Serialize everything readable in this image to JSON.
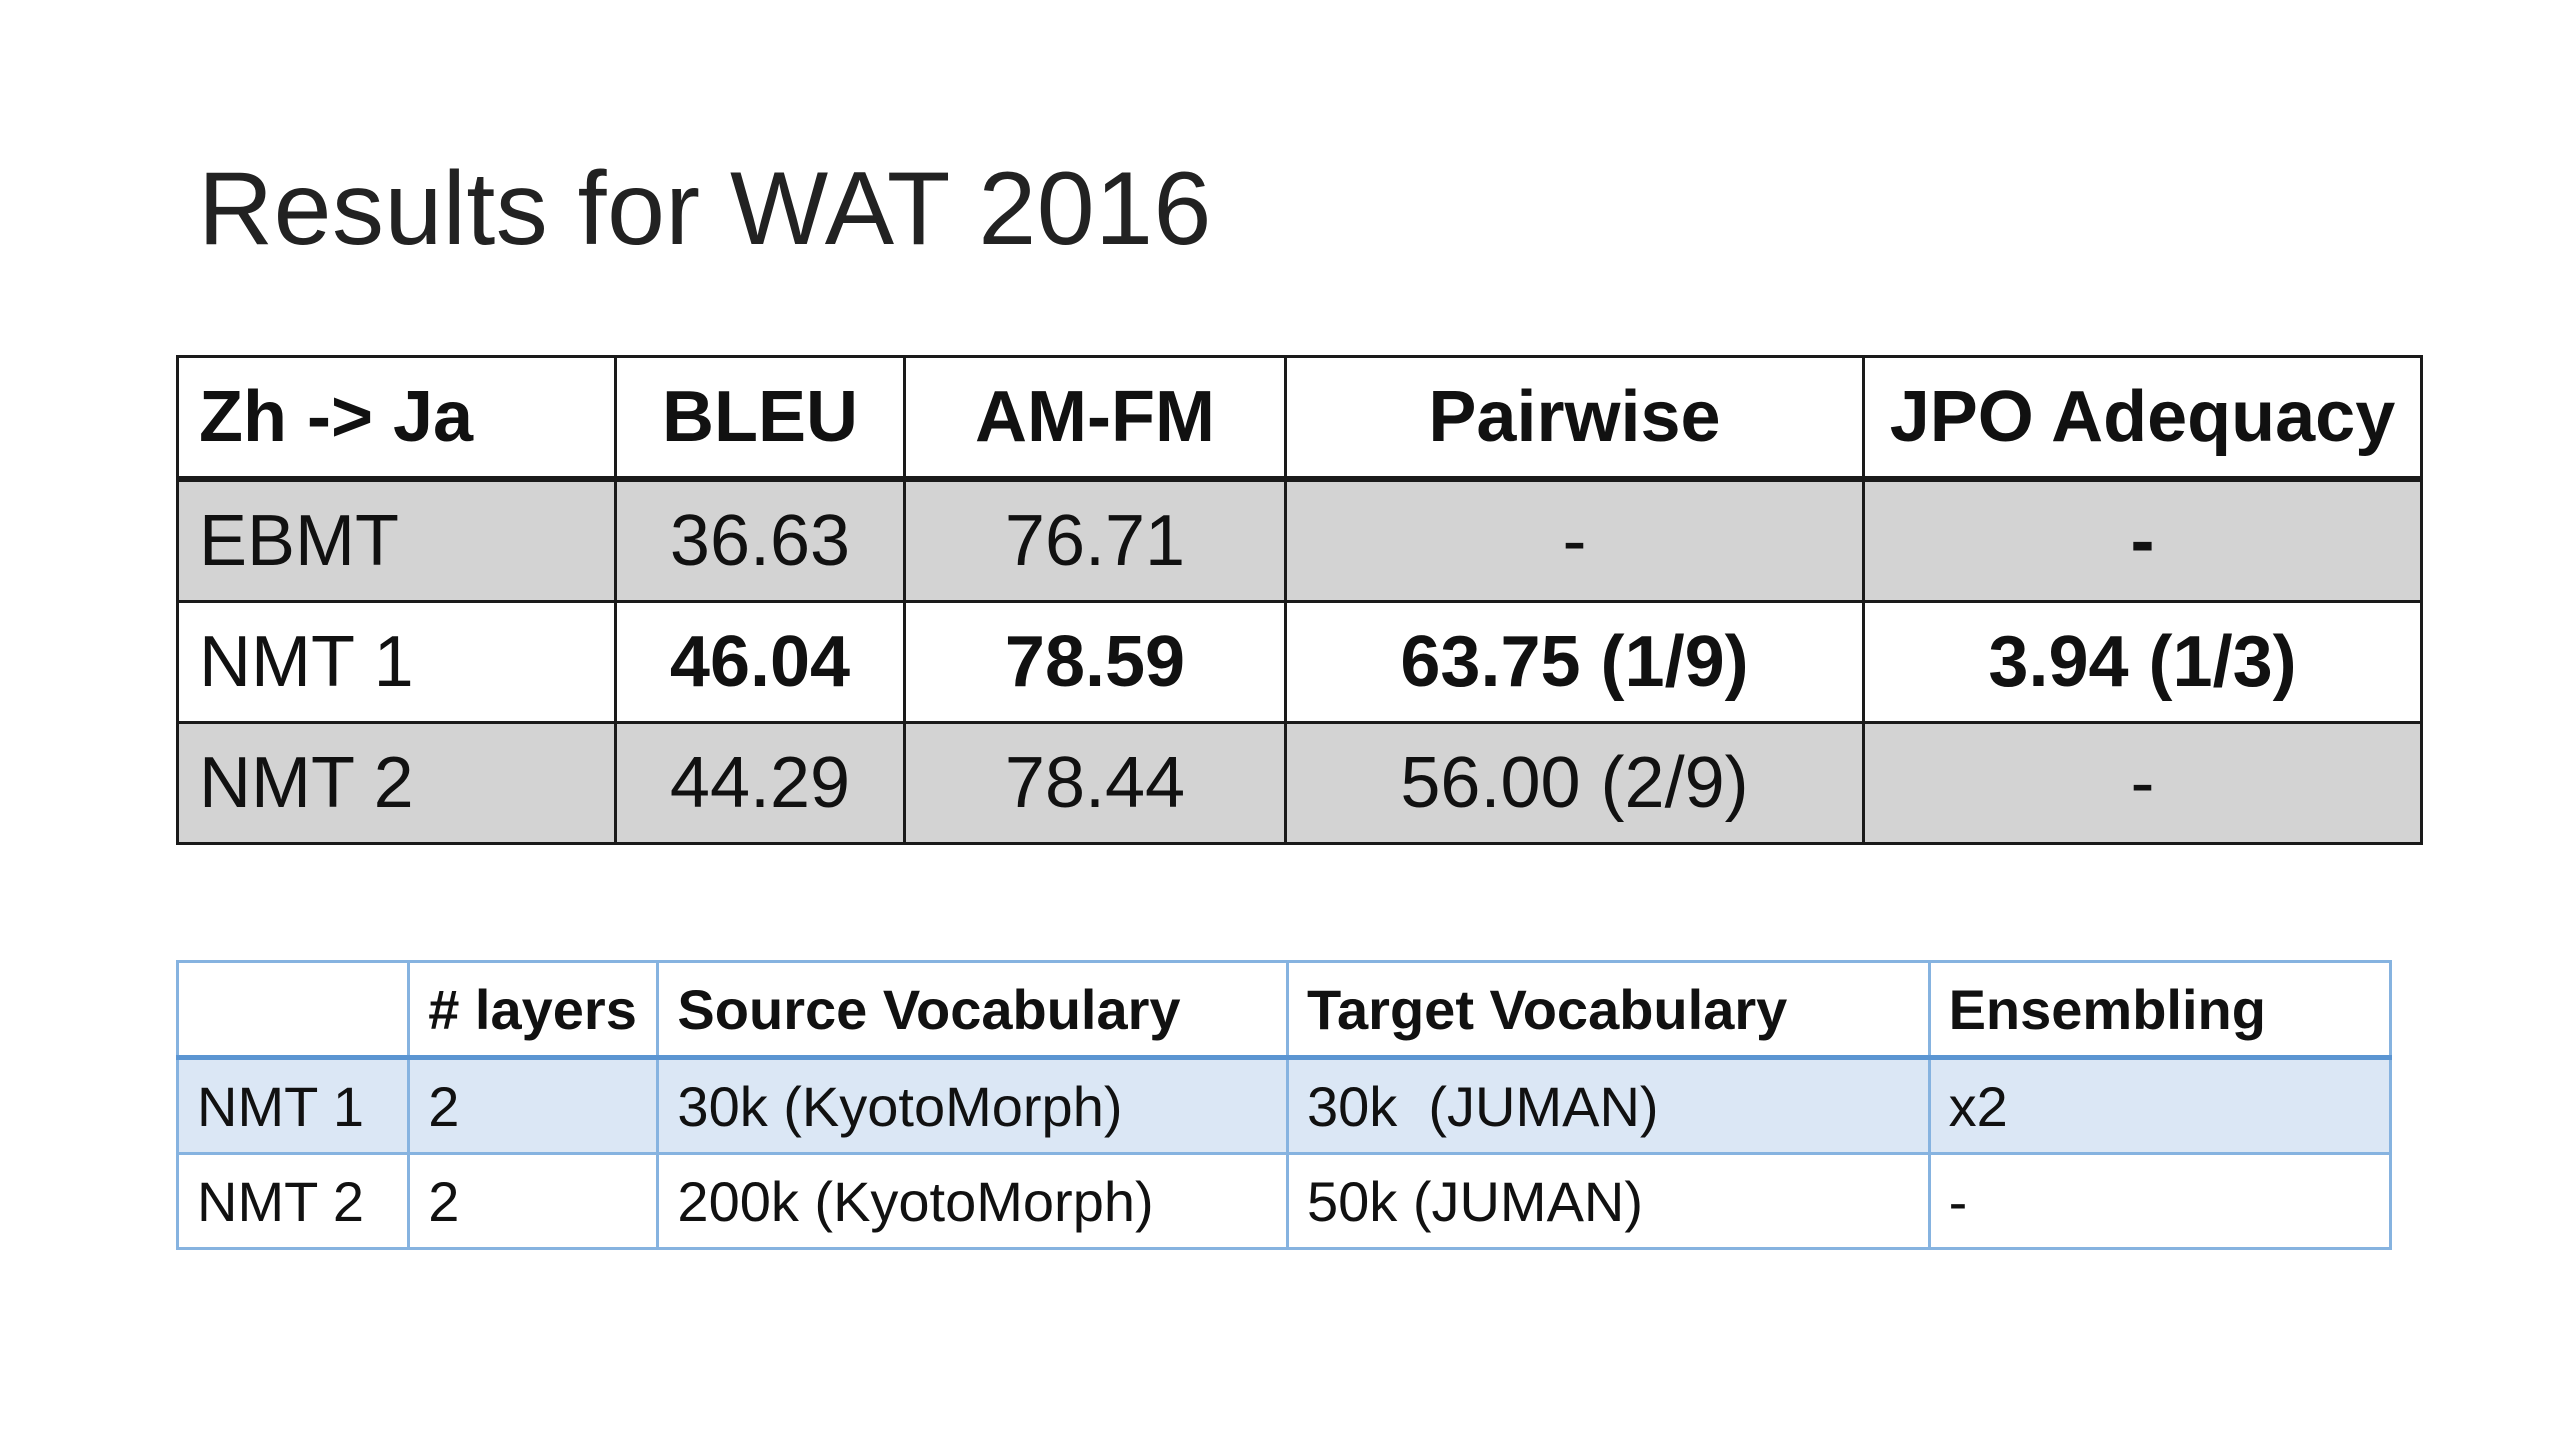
{
  "title": "Results for WAT 2016",
  "results_table": {
    "headers": [
      "Zh -> Ja",
      "BLEU",
      "AM-FM",
      "Pairwise",
      "JPO Adequacy"
    ],
    "rows": [
      {
        "label": "EBMT",
        "bleu": "36.63",
        "amfm": "76.71",
        "pairwise": "-",
        "jpo": "-"
      },
      {
        "label": "NMT 1",
        "bleu": "46.04",
        "amfm": "78.59",
        "pairwise": "63.75 (1/9)",
        "jpo": "3.94 (1/3)"
      },
      {
        "label": "NMT 2",
        "bleu": "44.29",
        "amfm": "78.44",
        "pairwise": "56.00 (2/9)",
        "jpo": "-"
      }
    ]
  },
  "config_table": {
    "headers": [
      "",
      "# layers",
      "Source Vocabulary",
      "Target Vocabulary",
      "Ensembling"
    ],
    "rows": [
      {
        "label": "NMT 1",
        "layers": "2",
        "source": "30k (KyotoMorph)",
        "target": "30k  (JUMAN)",
        "ensembling": "x2"
      },
      {
        "label": "NMT 2",
        "layers": "2",
        "source": "200k (KyotoMorph)",
        "target": "50k (JUMAN)",
        "ensembling": "-"
      }
    ]
  },
  "colors": {
    "shaded_row": "#d3d3d3",
    "config_border": "#86b3e0",
    "config_tint": "#dbe7f5"
  }
}
